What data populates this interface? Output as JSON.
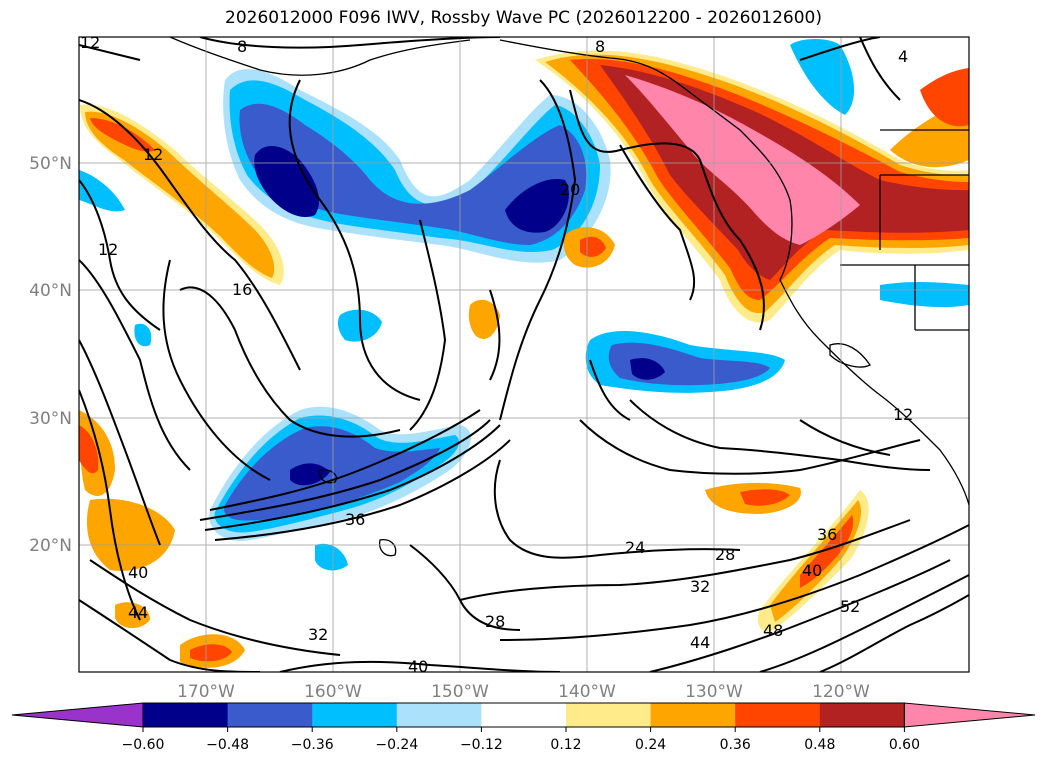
{
  "title": "2026012000 F096 IWV, Rossby Wave PC (2026012200 - 2026012600)",
  "lon_labels": [
    "170°W",
    "160°W",
    "150°W",
    "140°W",
    "130°W",
    "120°W"
  ],
  "lat_labels": [
    "50°N",
    "40°N",
    "30°N",
    "20°N"
  ],
  "contour_labels": [
    "12",
    "8",
    "8",
    "12",
    "12",
    "16",
    "20",
    "4",
    "12",
    "36",
    "24",
    "28",
    "32",
    "36",
    "40",
    "40",
    "44",
    "28",
    "32",
    "40",
    "44",
    "48",
    "52"
  ],
  "colorbar": {
    "colors": [
      "#9933cc",
      "#00008b",
      "#3a5bcc",
      "#00bfff",
      "#abe1fa",
      "#ffffff",
      "#ffeb8a",
      "#ffa500",
      "#ff4500",
      "#b22222",
      "#ff85aa"
    ],
    "ticks": [
      "−0.60",
      "−0.48",
      "−0.36",
      "−0.24",
      "−0.12",
      "0.12",
      "0.24",
      "0.36",
      "0.48",
      "0.60"
    ]
  }
}
